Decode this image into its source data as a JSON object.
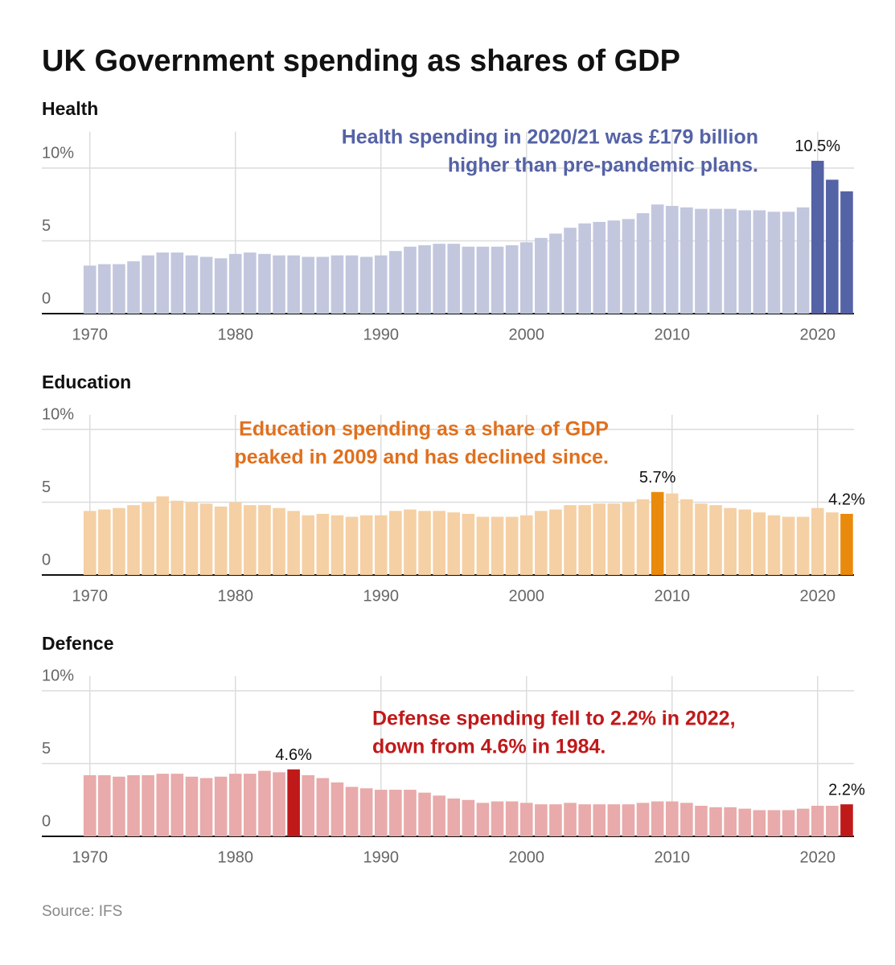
{
  "title": "UK Government spending as shares of GDP",
  "source": "Source: IFS",
  "chart_data": [
    {
      "type": "bar",
      "title": "Health",
      "x": [
        1970,
        1971,
        1972,
        1973,
        1974,
        1975,
        1976,
        1977,
        1978,
        1979,
        1980,
        1981,
        1982,
        1983,
        1984,
        1985,
        1986,
        1987,
        1988,
        1989,
        1990,
        1991,
        1992,
        1993,
        1994,
        1995,
        1996,
        1997,
        1998,
        1999,
        2000,
        2001,
        2002,
        2003,
        2004,
        2005,
        2006,
        2007,
        2008,
        2009,
        2010,
        2011,
        2012,
        2013,
        2014,
        2015,
        2016,
        2017,
        2018,
        2019,
        2020,
        2021,
        2022
      ],
      "values": [
        3.3,
        3.4,
        3.4,
        3.6,
        4.0,
        4.2,
        4.2,
        4.0,
        3.9,
        3.8,
        4.1,
        4.2,
        4.1,
        4.0,
        4.0,
        3.9,
        3.9,
        4.0,
        4.0,
        3.9,
        4.0,
        4.3,
        4.6,
        4.7,
        4.8,
        4.8,
        4.6,
        4.6,
        4.6,
        4.7,
        4.9,
        5.2,
        5.5,
        5.9,
        6.2,
        6.3,
        6.4,
        6.5,
        6.9,
        7.5,
        7.4,
        7.3,
        7.2,
        7.2,
        7.2,
        7.1,
        7.1,
        7.0,
        7.0,
        7.3,
        10.5,
        9.2,
        8.4
      ],
      "value_labels": [
        null,
        null,
        null,
        null,
        null,
        null,
        null,
        null,
        null,
        null,
        null,
        null,
        null,
        null,
        null,
        null,
        null,
        null,
        null,
        null,
        null,
        null,
        null,
        null,
        null,
        null,
        null,
        null,
        null,
        null,
        null,
        null,
        null,
        null,
        null,
        null,
        null,
        null,
        null,
        null,
        null,
        null,
        null,
        null,
        null,
        null,
        null,
        null,
        null,
        null,
        "10.5%",
        null,
        null
      ],
      "color": "#c2c7de",
      "highlight": {
        "color": "#5462a6",
        "x": [
          2020,
          2021,
          2022
        ]
      },
      "annotation": {
        "lines": [
          "Health spending in 2020/21 was £179 billion",
          "higher than pre-pandemic plans."
        ],
        "color": "#5462a6"
      },
      "xlim": [
        1966.7,
        2022.5
      ],
      "xticks": [
        1970,
        1980,
        1990,
        2000,
        2010,
        2020
      ],
      "ylim": [
        0,
        12.5
      ],
      "yticks": [
        0,
        5,
        {
          "value": 10,
          "label": "10%"
        }
      ],
      "grid": true
    },
    {
      "type": "bar",
      "title": "Education",
      "x": [
        1970,
        1971,
        1972,
        1973,
        1974,
        1975,
        1976,
        1977,
        1978,
        1979,
        1980,
        1981,
        1982,
        1983,
        1984,
        1985,
        1986,
        1987,
        1988,
        1989,
        1990,
        1991,
        1992,
        1993,
        1994,
        1995,
        1996,
        1997,
        1998,
        1999,
        2000,
        2001,
        2002,
        2003,
        2004,
        2005,
        2006,
        2007,
        2008,
        2009,
        2010,
        2011,
        2012,
        2013,
        2014,
        2015,
        2016,
        2017,
        2018,
        2019,
        2020,
        2021,
        2022
      ],
      "values": [
        4.4,
        4.5,
        4.6,
        4.8,
        5.0,
        5.4,
        5.1,
        5.0,
        4.9,
        4.7,
        5.0,
        4.8,
        4.8,
        4.6,
        4.4,
        4.1,
        4.2,
        4.1,
        4.0,
        4.1,
        4.1,
        4.4,
        4.5,
        4.4,
        4.4,
        4.3,
        4.2,
        4.0,
        4.0,
        4.0,
        4.1,
        4.4,
        4.5,
        4.8,
        4.8,
        4.9,
        4.9,
        5.0,
        5.2,
        5.7,
        5.6,
        5.2,
        4.9,
        4.8,
        4.6,
        4.5,
        4.3,
        4.1,
        4.0,
        4.0,
        4.6,
        4.3,
        4.2
      ],
      "value_labels": [
        null,
        null,
        null,
        null,
        null,
        null,
        null,
        null,
        null,
        null,
        null,
        null,
        null,
        null,
        null,
        null,
        null,
        null,
        null,
        null,
        null,
        null,
        null,
        null,
        null,
        null,
        null,
        null,
        null,
        null,
        null,
        null,
        null,
        null,
        null,
        null,
        null,
        null,
        null,
        "5.7%",
        null,
        null,
        null,
        null,
        null,
        null,
        null,
        null,
        null,
        null,
        null,
        null,
        "4.2%"
      ],
      "color": "#f5d0a4",
      "highlight": {
        "color": "#ea8a0c",
        "x": [
          2009,
          2022
        ]
      },
      "annotation": {
        "lines": [
          "Education spending as a share of GDP",
          "peaked in 2009 and has declined since."
        ],
        "color": "#e0701e"
      },
      "xlim": [
        1966.7,
        2022.5
      ],
      "xticks": [
        1970,
        1980,
        1990,
        2000,
        2010,
        2020
      ],
      "ylim": [
        0,
        11
      ],
      "yticks": [
        0,
        5,
        {
          "value": 10,
          "label": "10%"
        }
      ],
      "grid": true
    },
    {
      "type": "bar",
      "title": "Defence",
      "x": [
        1970,
        1971,
        1972,
        1973,
        1974,
        1975,
        1976,
        1977,
        1978,
        1979,
        1980,
        1981,
        1982,
        1983,
        1984,
        1985,
        1986,
        1987,
        1988,
        1989,
        1990,
        1991,
        1992,
        1993,
        1994,
        1995,
        1996,
        1997,
        1998,
        1999,
        2000,
        2001,
        2002,
        2003,
        2004,
        2005,
        2006,
        2007,
        2008,
        2009,
        2010,
        2011,
        2012,
        2013,
        2014,
        2015,
        2016,
        2017,
        2018,
        2019,
        2020,
        2021,
        2022
      ],
      "values": [
        4.2,
        4.2,
        4.1,
        4.2,
        4.2,
        4.3,
        4.3,
        4.1,
        4.0,
        4.1,
        4.3,
        4.3,
        4.5,
        4.4,
        4.6,
        4.2,
        4.0,
        3.7,
        3.4,
        3.3,
        3.2,
        3.2,
        3.2,
        3.0,
        2.8,
        2.6,
        2.5,
        2.3,
        2.4,
        2.4,
        2.3,
        2.2,
        2.2,
        2.3,
        2.2,
        2.2,
        2.2,
        2.2,
        2.3,
        2.4,
        2.4,
        2.3,
        2.1,
        2.0,
        2.0,
        1.9,
        1.8,
        1.8,
        1.8,
        1.9,
        2.1,
        2.1,
        2.2
      ],
      "value_labels": [
        null,
        null,
        null,
        null,
        null,
        null,
        null,
        null,
        null,
        null,
        null,
        null,
        null,
        null,
        "4.6%",
        null,
        null,
        null,
        null,
        null,
        null,
        null,
        null,
        null,
        null,
        null,
        null,
        null,
        null,
        null,
        null,
        null,
        null,
        null,
        null,
        null,
        null,
        null,
        null,
        null,
        null,
        null,
        null,
        null,
        null,
        null,
        null,
        null,
        null,
        null,
        null,
        null,
        "2.2%"
      ],
      "color": "#e8aaaa",
      "highlight": {
        "color": "#c0191a",
        "x": [
          1984,
          2022
        ]
      },
      "annotation": {
        "lines": [
          "Defense spending fell to 2.2% in 2022,",
          "down from 4.6% in 1984."
        ],
        "color": "#c0191a"
      },
      "xlim": [
        1966.7,
        2022.5
      ],
      "xticks": [
        1970,
        1980,
        1990,
        2000,
        2010,
        2020
      ],
      "ylim": [
        0,
        11
      ],
      "yticks": [
        0,
        5,
        {
          "value": 10,
          "label": "10%"
        }
      ],
      "grid": true
    }
  ]
}
